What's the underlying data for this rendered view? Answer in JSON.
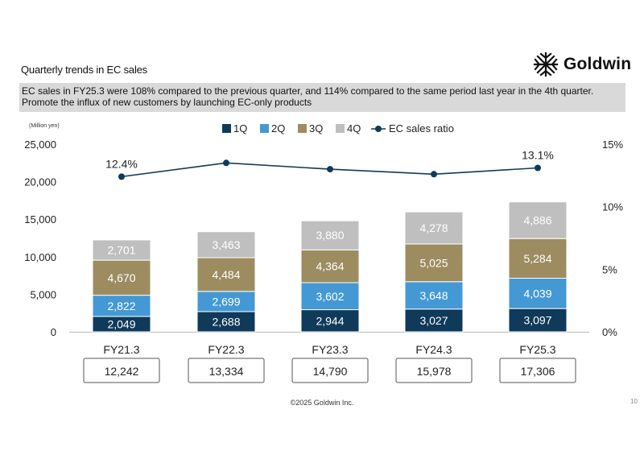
{
  "page": {
    "title": "Quarterly trends in EC sales",
    "logo_text": "Goldwin",
    "summary_line1": "EC sales in FY25.3 were 108% compared to the previous quarter, and 114% compared to the same period last year in the 4th quarter.",
    "summary_line2": "Promote the influx of new customers by launching EC-only products",
    "footer": "©2025 Goldwin Inc.",
    "page_number": "10"
  },
  "chart_data": {
    "type": "bar",
    "stacked": true,
    "unit_label": "(Million yen)",
    "categories": [
      "FY21.3",
      "FY22.3",
      "FY23.3",
      "FY24.3",
      "FY25.3"
    ],
    "series": [
      {
        "name": "1Q",
        "color": "#0f3a5a",
        "values": [
          2049,
          2688,
          2944,
          3027,
          3097
        ],
        "labels": [
          "2,049",
          "2,688",
          "2,944",
          "3,027",
          "3,097"
        ]
      },
      {
        "name": "2Q",
        "color": "#4499d4",
        "values": [
          2822,
          2699,
          3602,
          3648,
          4039
        ],
        "labels": [
          "2,822",
          "2,699",
          "3,602",
          "3,648",
          "4,039"
        ]
      },
      {
        "name": "3Q",
        "color": "#9c8c60",
        "values": [
          4670,
          4484,
          4364,
          5025,
          5284
        ],
        "labels": [
          "4,670",
          "4,484",
          "4,364",
          "5,025",
          "5,284"
        ]
      },
      {
        "name": "4Q",
        "color": "#bfbfbf",
        "values": [
          2701,
          3463,
          3880,
          4278,
          4886
        ],
        "labels": [
          "2,701",
          "3,463",
          "3,880",
          "4,278",
          "4,886"
        ]
      }
    ],
    "totals": [
      "12,242",
      "13,334",
      "14,790",
      "15,978",
      "17,306"
    ],
    "line_series": {
      "name": "EC sales ratio",
      "color": "#0f3a5a",
      "values": [
        12.4,
        13.5,
        13.0,
        12.6,
        13.1
      ],
      "point_labels": [
        "12.4%",
        "",
        "",
        "",
        "13.1%"
      ]
    },
    "y_left": {
      "min": 0,
      "max": 25000,
      "ticks": [
        0,
        5000,
        10000,
        15000,
        20000,
        25000
      ],
      "tick_labels": [
        "0",
        "5,000",
        "10,000",
        "15,000",
        "20,000",
        "25,000"
      ]
    },
    "y_right": {
      "min": 0,
      "max": 15,
      "ticks": [
        0,
        5,
        10,
        15
      ],
      "tick_labels": [
        "0%",
        "5%",
        "10%",
        "15%"
      ]
    },
    "legend_position": "top",
    "grid": false
  }
}
